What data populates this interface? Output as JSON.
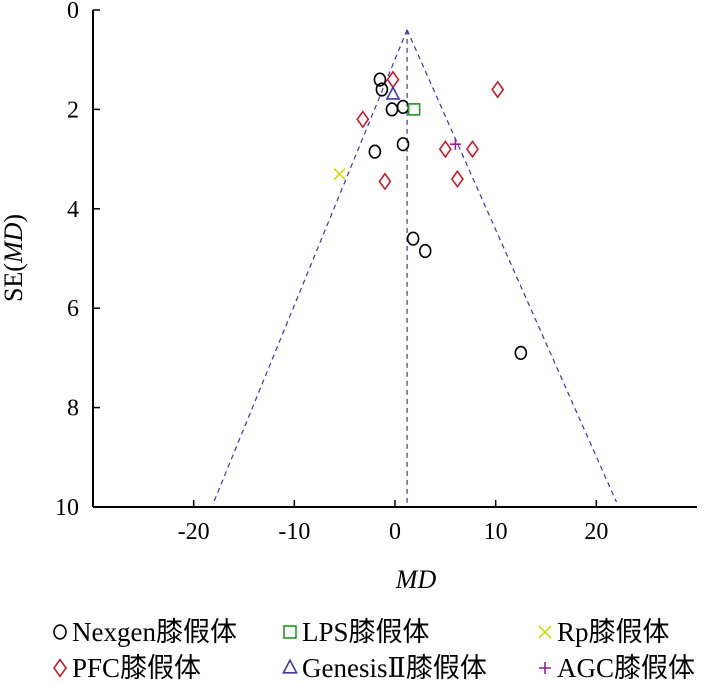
{
  "chart_data": {
    "type": "scatter",
    "subtype": "funnel-plot",
    "xlabel": "MD",
    "ylabel": {
      "prefix": "SE(",
      "italic": "MD",
      "suffix": ")"
    },
    "xlim": [
      -30,
      30
    ],
    "ylim": [
      0,
      10
    ],
    "y_inverted": true,
    "xticks": [
      -20,
      -10,
      0,
      10,
      20
    ],
    "xtick_labels": [
      "-20",
      "-10",
      "0",
      "10",
      "20"
    ],
    "yticks": [
      0,
      2,
      4,
      6,
      8,
      10
    ],
    "ytick_labels": [
      "0",
      "2",
      "4",
      "6",
      "8",
      "10"
    ],
    "grid": false,
    "legend_position": "bottom",
    "pooled_md": 1.2,
    "funnel_lines": [
      {
        "name": "left-limit",
        "points": [
          [
            1.2,
            0.4
          ],
          [
            -18,
            9.9
          ]
        ],
        "style": "dashed",
        "color": "#3a3aa5"
      },
      {
        "name": "right-limit",
        "points": [
          [
            1.2,
            0.4
          ],
          [
            22,
            9.9
          ]
        ],
        "style": "dashed",
        "color": "#3a3aa5"
      },
      {
        "name": "pooled-estimate",
        "points": [
          [
            1.2,
            0.4
          ],
          [
            1.2,
            10
          ]
        ],
        "style": "dashed",
        "color": "#3a3aa5"
      }
    ],
    "series": [
      {
        "name": "Nexgen膝假体",
        "marker": "circle",
        "color": "#000000",
        "points": [
          [
            -1.5,
            1.4
          ],
          [
            -1.3,
            1.6
          ],
          [
            -0.3,
            2.0
          ],
          [
            0.8,
            1.95
          ],
          [
            0.8,
            2.7
          ],
          [
            -2.0,
            2.85
          ],
          [
            1.8,
            4.6
          ],
          [
            3.0,
            4.85
          ],
          [
            12.5,
            6.9
          ]
        ]
      },
      {
        "name": "LPS膝假体",
        "marker": "square",
        "color": "#1f9a1f",
        "points": [
          [
            1.9,
            2.0
          ]
        ]
      },
      {
        "name": "Rp膝假体",
        "marker": "x",
        "color": "#d6d600",
        "points": [
          [
            -5.5,
            3.3
          ]
        ]
      },
      {
        "name": "PFC膝假体",
        "marker": "diamond",
        "color": "#c81a2b",
        "points": [
          [
            -0.2,
            1.4
          ],
          [
            10.2,
            1.6
          ],
          [
            -3.2,
            2.2
          ],
          [
            5.0,
            2.8
          ],
          [
            7.7,
            2.8
          ],
          [
            6.2,
            3.4
          ],
          [
            -1.0,
            3.45
          ]
        ]
      },
      {
        "name": "GenesisⅡ膝假体",
        "marker": "triangle",
        "color": "#3a3aa5",
        "points": [
          [
            -0.2,
            1.7
          ]
        ]
      },
      {
        "name": "AGC膝假体",
        "marker": "plus",
        "color": "#a0179c",
        "points": [
          [
            6.0,
            2.7
          ]
        ]
      }
    ]
  }
}
